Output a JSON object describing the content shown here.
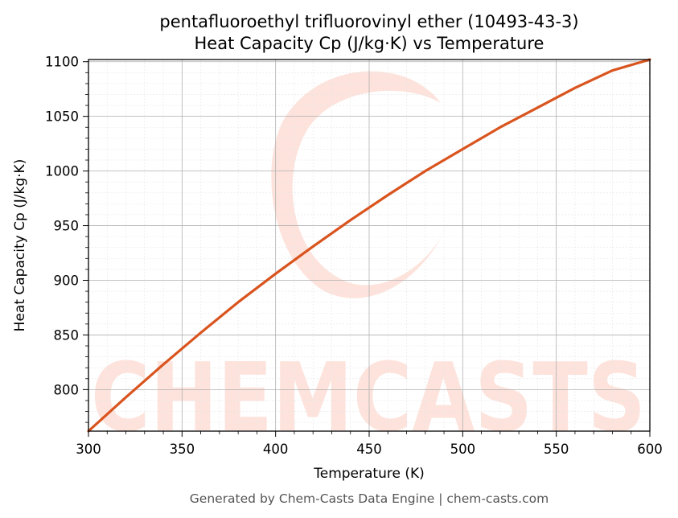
{
  "chart_data": {
    "type": "line",
    "title_line1": "pentafluoroethyl trifluorovinyl ether (10493-43-3)",
    "title_line2": "Heat Capacity Cp (J/kg·K) vs Temperature",
    "xlabel": "Temperature (K)",
    "ylabel": "Heat Capacity Cp (J/kg·K)",
    "xlim": [
      300,
      600
    ],
    "ylim": [
      762,
      1102
    ],
    "xticks": [
      300,
      350,
      400,
      450,
      500,
      550,
      600
    ],
    "yticks": [
      800,
      850,
      900,
      950,
      1000,
      1050,
      1100
    ],
    "grid": true,
    "line_color": "#d9541e",
    "series": [
      {
        "x": [
          300,
          320,
          340,
          360,
          380,
          400,
          420,
          440,
          460,
          480,
          500,
          520,
          540,
          560,
          580,
          600
        ],
        "y": [
          762,
          793,
          823,
          852,
          880,
          906,
          931,
          955,
          978,
          1000,
          1020,
          1040,
          1058,
          1076,
          1092,
          1102
        ]
      }
    ]
  },
  "watermark": {
    "text": "CHEMCASTS",
    "color": "#fde3dc"
  },
  "footer": "Generated by Chem-Casts Data Engine | chem-casts.com"
}
